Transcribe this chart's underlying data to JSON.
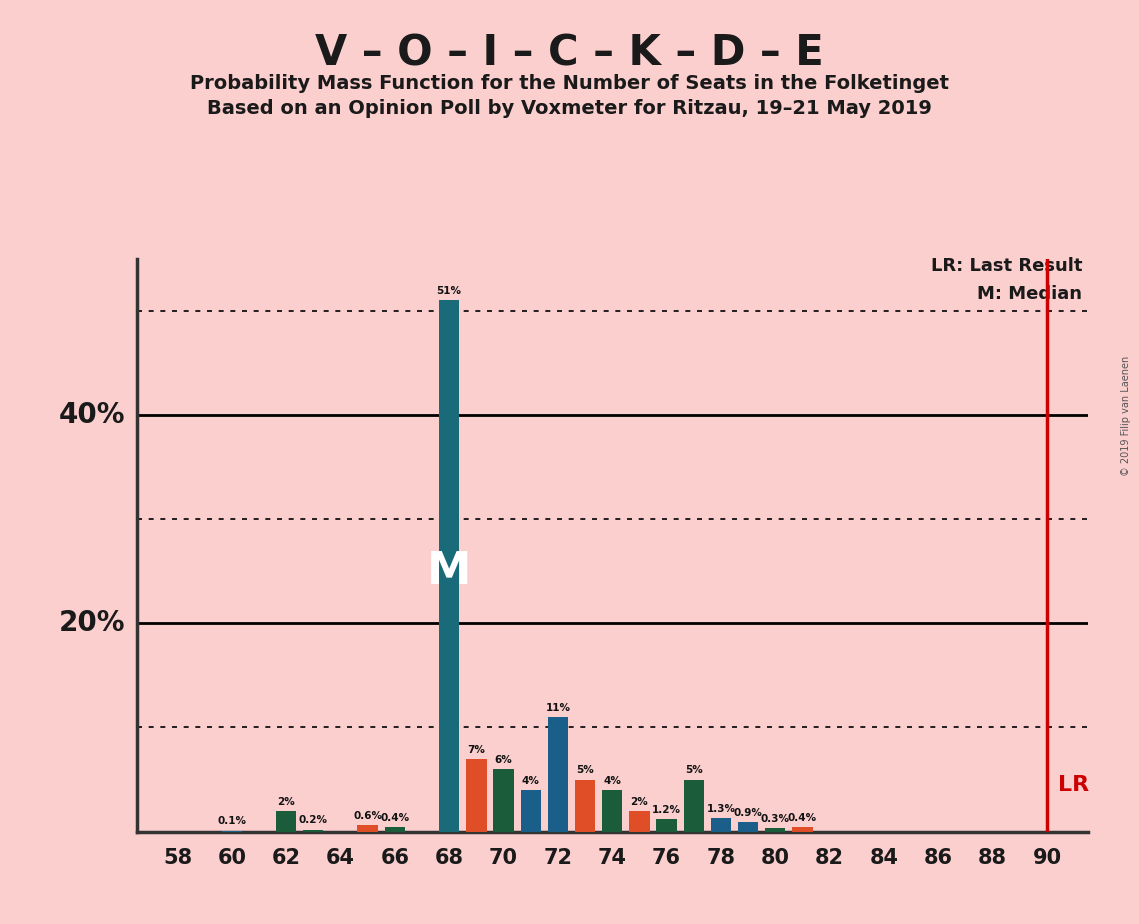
{
  "title": "V – O – I – C – K – D – E",
  "subtitle1": "Probability Mass Function for the Number of Seats in the Folketinget",
  "subtitle2": "Based on an Opinion Poll by Voxmeter for Ritzau, 19–21 May 2019",
  "copyright": "© 2019 Filip van Laenen",
  "background_color": "#FCCFCF",
  "seats": [
    58,
    59,
    60,
    61,
    62,
    63,
    64,
    65,
    66,
    67,
    68,
    69,
    70,
    71,
    72,
    73,
    74,
    75,
    76,
    77,
    78,
    79,
    80,
    81,
    82,
    83,
    84,
    85,
    86,
    87,
    88,
    89,
    90
  ],
  "values": [
    0.0,
    0.0,
    0.1,
    0.0,
    2.0,
    0.2,
    0.0,
    0.6,
    0.4,
    0.0,
    51.0,
    7.0,
    6.0,
    4.0,
    11.0,
    5.0,
    4.0,
    2.0,
    1.2,
    5.0,
    1.3,
    0.9,
    0.3,
    0.4,
    0.0,
    0.0,
    0.0,
    0.0,
    0.0,
    0.0,
    0.0,
    0.0,
    0.0
  ],
  "bar_colors": [
    "#1A5E8A",
    "#1A5E8A",
    "#1A5E8A",
    "#1A5E8A",
    "#1B5C3A",
    "#1B5C3A",
    "#1B5C3A",
    "#E04E28",
    "#1B5C3A",
    "#1A5E8A",
    "#1A6B7A",
    "#E04E28",
    "#1B5C3A",
    "#1A5E8A",
    "#1A5E8A",
    "#E04E28",
    "#1B5C3A",
    "#E04E28",
    "#1B5C3A",
    "#1B5C3A",
    "#1A5E8A",
    "#1A5E8A",
    "#1B5C3A",
    "#E04E28",
    "#1A5E8A",
    "#1A5E8A",
    "#1A5E8A",
    "#1A5E8A",
    "#1A5E8A",
    "#1A5E8A",
    "#1A5E8A",
    "#1A5E8A",
    "#1A5E8A"
  ],
  "median_seat": 68,
  "last_result_seat": 90,
  "hlines_dotted": [
    10,
    30,
    50
  ],
  "hlines_solid": [
    20,
    40
  ],
  "lr_line_color": "#CC0000",
  "lr_legend": "LR: Last Result",
  "m_legend": "M: Median",
  "lr_label": "LR",
  "title_color": "#1A1A1A"
}
